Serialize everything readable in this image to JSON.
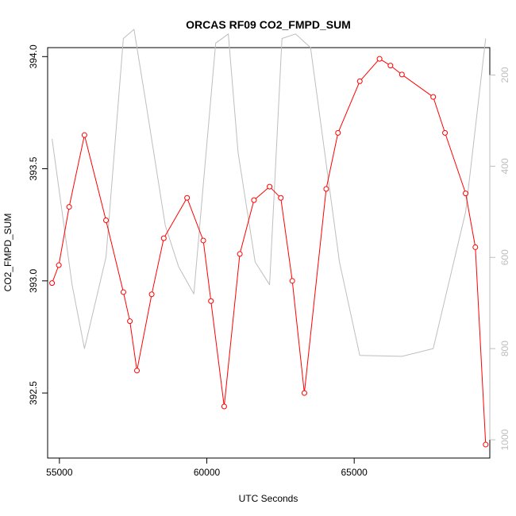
{
  "chart_data": {
    "type": "line",
    "title": "ORCAS RF09 CO2_FMPD_SUM",
    "xlabel": "UTC Seconds",
    "ylabel": "CO2_FMPD_SUM",
    "xlim": [
      54600,
      69600
    ],
    "ylim": [
      392.21,
      394.04
    ],
    "x_ticks": [
      55000,
      60000,
      65000
    ],
    "x_tick_labels": [
      "55000",
      "60000",
      "65000"
    ],
    "y_ticks": [
      392.5,
      393.0,
      393.5,
      394.0
    ],
    "y_tick_labels": [
      "392.5",
      "393.0",
      "393.5",
      "394.0"
    ],
    "y2lim": [
      1040,
      140
    ],
    "y2_ticks": [
      200,
      400,
      600,
      800,
      1000
    ],
    "y2_tick_labels": [
      "200",
      "400",
      "600",
      "800",
      "1000"
    ],
    "grid": false,
    "colors": {
      "primary": "#ff0000",
      "secondary": "#bebebe",
      "axis": "#000000"
    },
    "series": [
      {
        "axis": "left",
        "style": "line+points",
        "color": "#ff0000",
        "x": [
          54750,
          54980,
          55330,
          55850,
          56580,
          57170,
          57390,
          57630,
          58130,
          58540,
          59330,
          59880,
          60140,
          60590,
          61120,
          61600,
          62130,
          62510,
          62900,
          63310,
          64050,
          64450,
          65190,
          65860,
          66230,
          66620,
          67680,
          68080,
          68780,
          69110,
          69460
        ],
        "y": [
          392.99,
          393.07,
          393.33,
          393.65,
          393.27,
          392.95,
          392.82,
          392.6,
          392.94,
          393.19,
          393.37,
          393.18,
          392.91,
          392.44,
          393.12,
          393.36,
          393.42,
          393.37,
          393.0,
          392.5,
          393.41,
          393.66,
          393.89,
          393.99,
          393.96,
          393.92,
          393.82,
          393.66,
          393.39,
          393.15,
          392.27
        ]
      },
      {
        "axis": "right",
        "style": "line",
        "color": "#bebebe",
        "x": [
          54750,
          55430,
          55850,
          56580,
          57170,
          57530,
          57930,
          58590,
          59040,
          59560,
          59880,
          60300,
          60730,
          61060,
          61640,
          62130,
          62550,
          63010,
          63520,
          64500,
          65190,
          65860,
          66620,
          67680,
          68780,
          69460
        ],
        "y": [
          340,
          660,
          800,
          600,
          120,
          100,
          260,
          530,
          620,
          680,
          440,
          130,
          110,
          370,
          610,
          660,
          120,
          110,
          140,
          610,
          815,
          816,
          817,
          800,
          500,
          120
        ]
      }
    ]
  }
}
